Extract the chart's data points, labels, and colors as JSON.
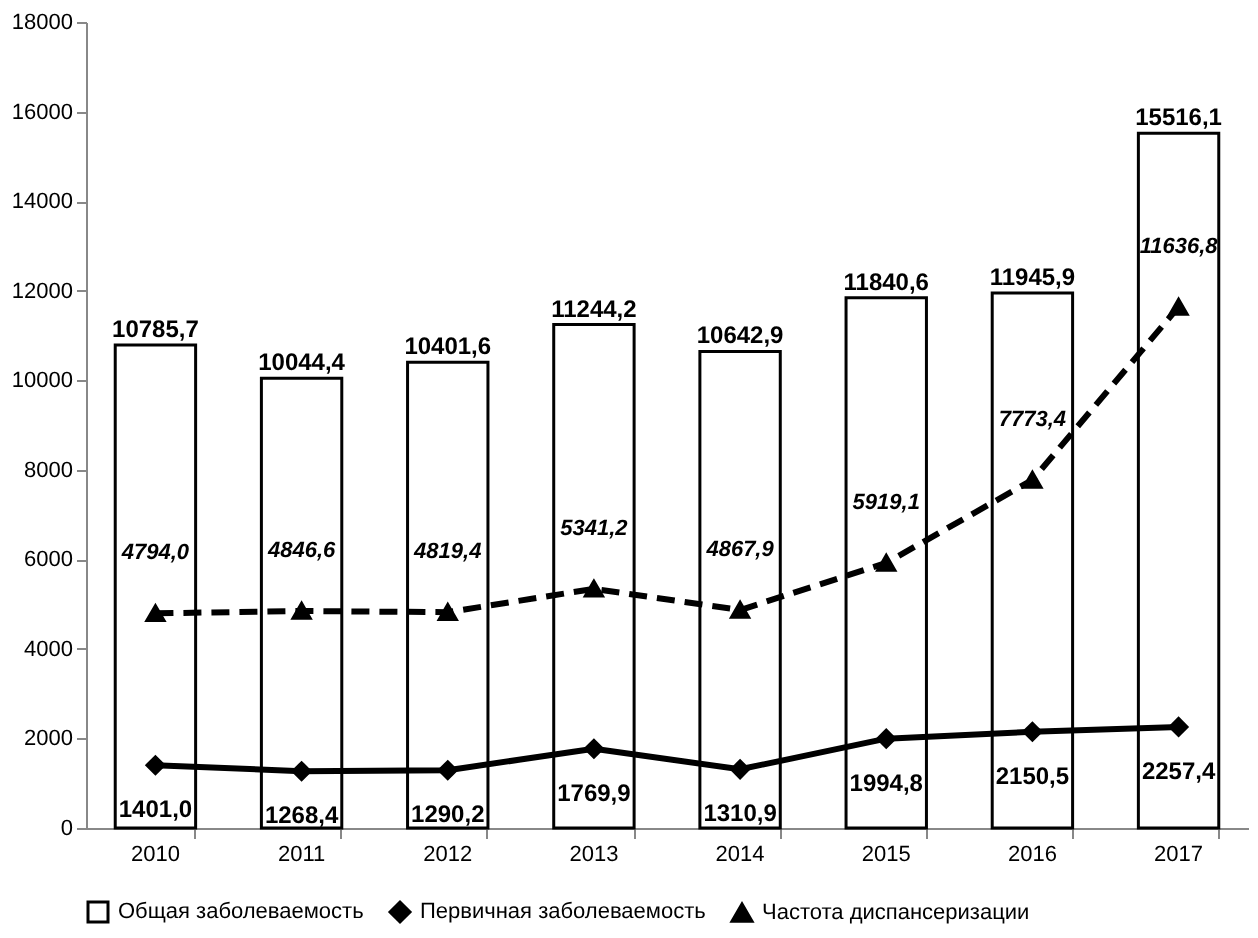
{
  "chart_data": {
    "type": "bar",
    "categories": [
      "2010",
      "2011",
      "2012",
      "2013",
      "2014",
      "2015",
      "2016",
      "2017"
    ],
    "ylim": [
      0,
      18000
    ],
    "yticks": [
      0,
      2000,
      4000,
      6000,
      8000,
      10000,
      12000,
      14000,
      16000,
      18000
    ],
    "grid": false,
    "legend": "bottom",
    "series": [
      {
        "name": "Общая заболеваемость",
        "color": "#ffffff",
        "values": [
          10785.7,
          10044.4,
          10401.6,
          11244.2,
          10642.9,
          11840.6,
          11945.9,
          15516.1
        ],
        "value_labels": [
          "10785,7",
          "10044,4",
          "10401,6",
          "11244,2",
          "10642,9",
          "11840,6",
          "11945,9",
          "15516,1"
        ]
      },
      {
        "name": "Первичная заболеваемость",
        "type": "line",
        "color": "#000000",
        "marker": "diamond",
        "line_style": "solid",
        "values": [
          1401.0,
          1268.4,
          1290.2,
          1769.9,
          1310.9,
          1994.8,
          2150.5,
          2257.4
        ],
        "value_labels": [
          "1401,0",
          "1268,4",
          "1290,2",
          "1769,9",
          "1310,9",
          "1994,8",
          "2150,5",
          "2257,4"
        ]
      },
      {
        "name": "Частота диспансеризации",
        "type": "line",
        "color": "#000000",
        "marker": "triangle",
        "line_style": "dashed",
        "values": [
          4794.0,
          4846.6,
          4819.4,
          5341.2,
          4867.9,
          5919.1,
          7773.4,
          11636.8
        ],
        "value_labels": [
          "4794,0",
          "4846,6",
          "4819,4",
          "5341,2",
          "4867,9",
          "5919,1",
          "7773,4",
          "11636,8"
        ]
      }
    ]
  }
}
